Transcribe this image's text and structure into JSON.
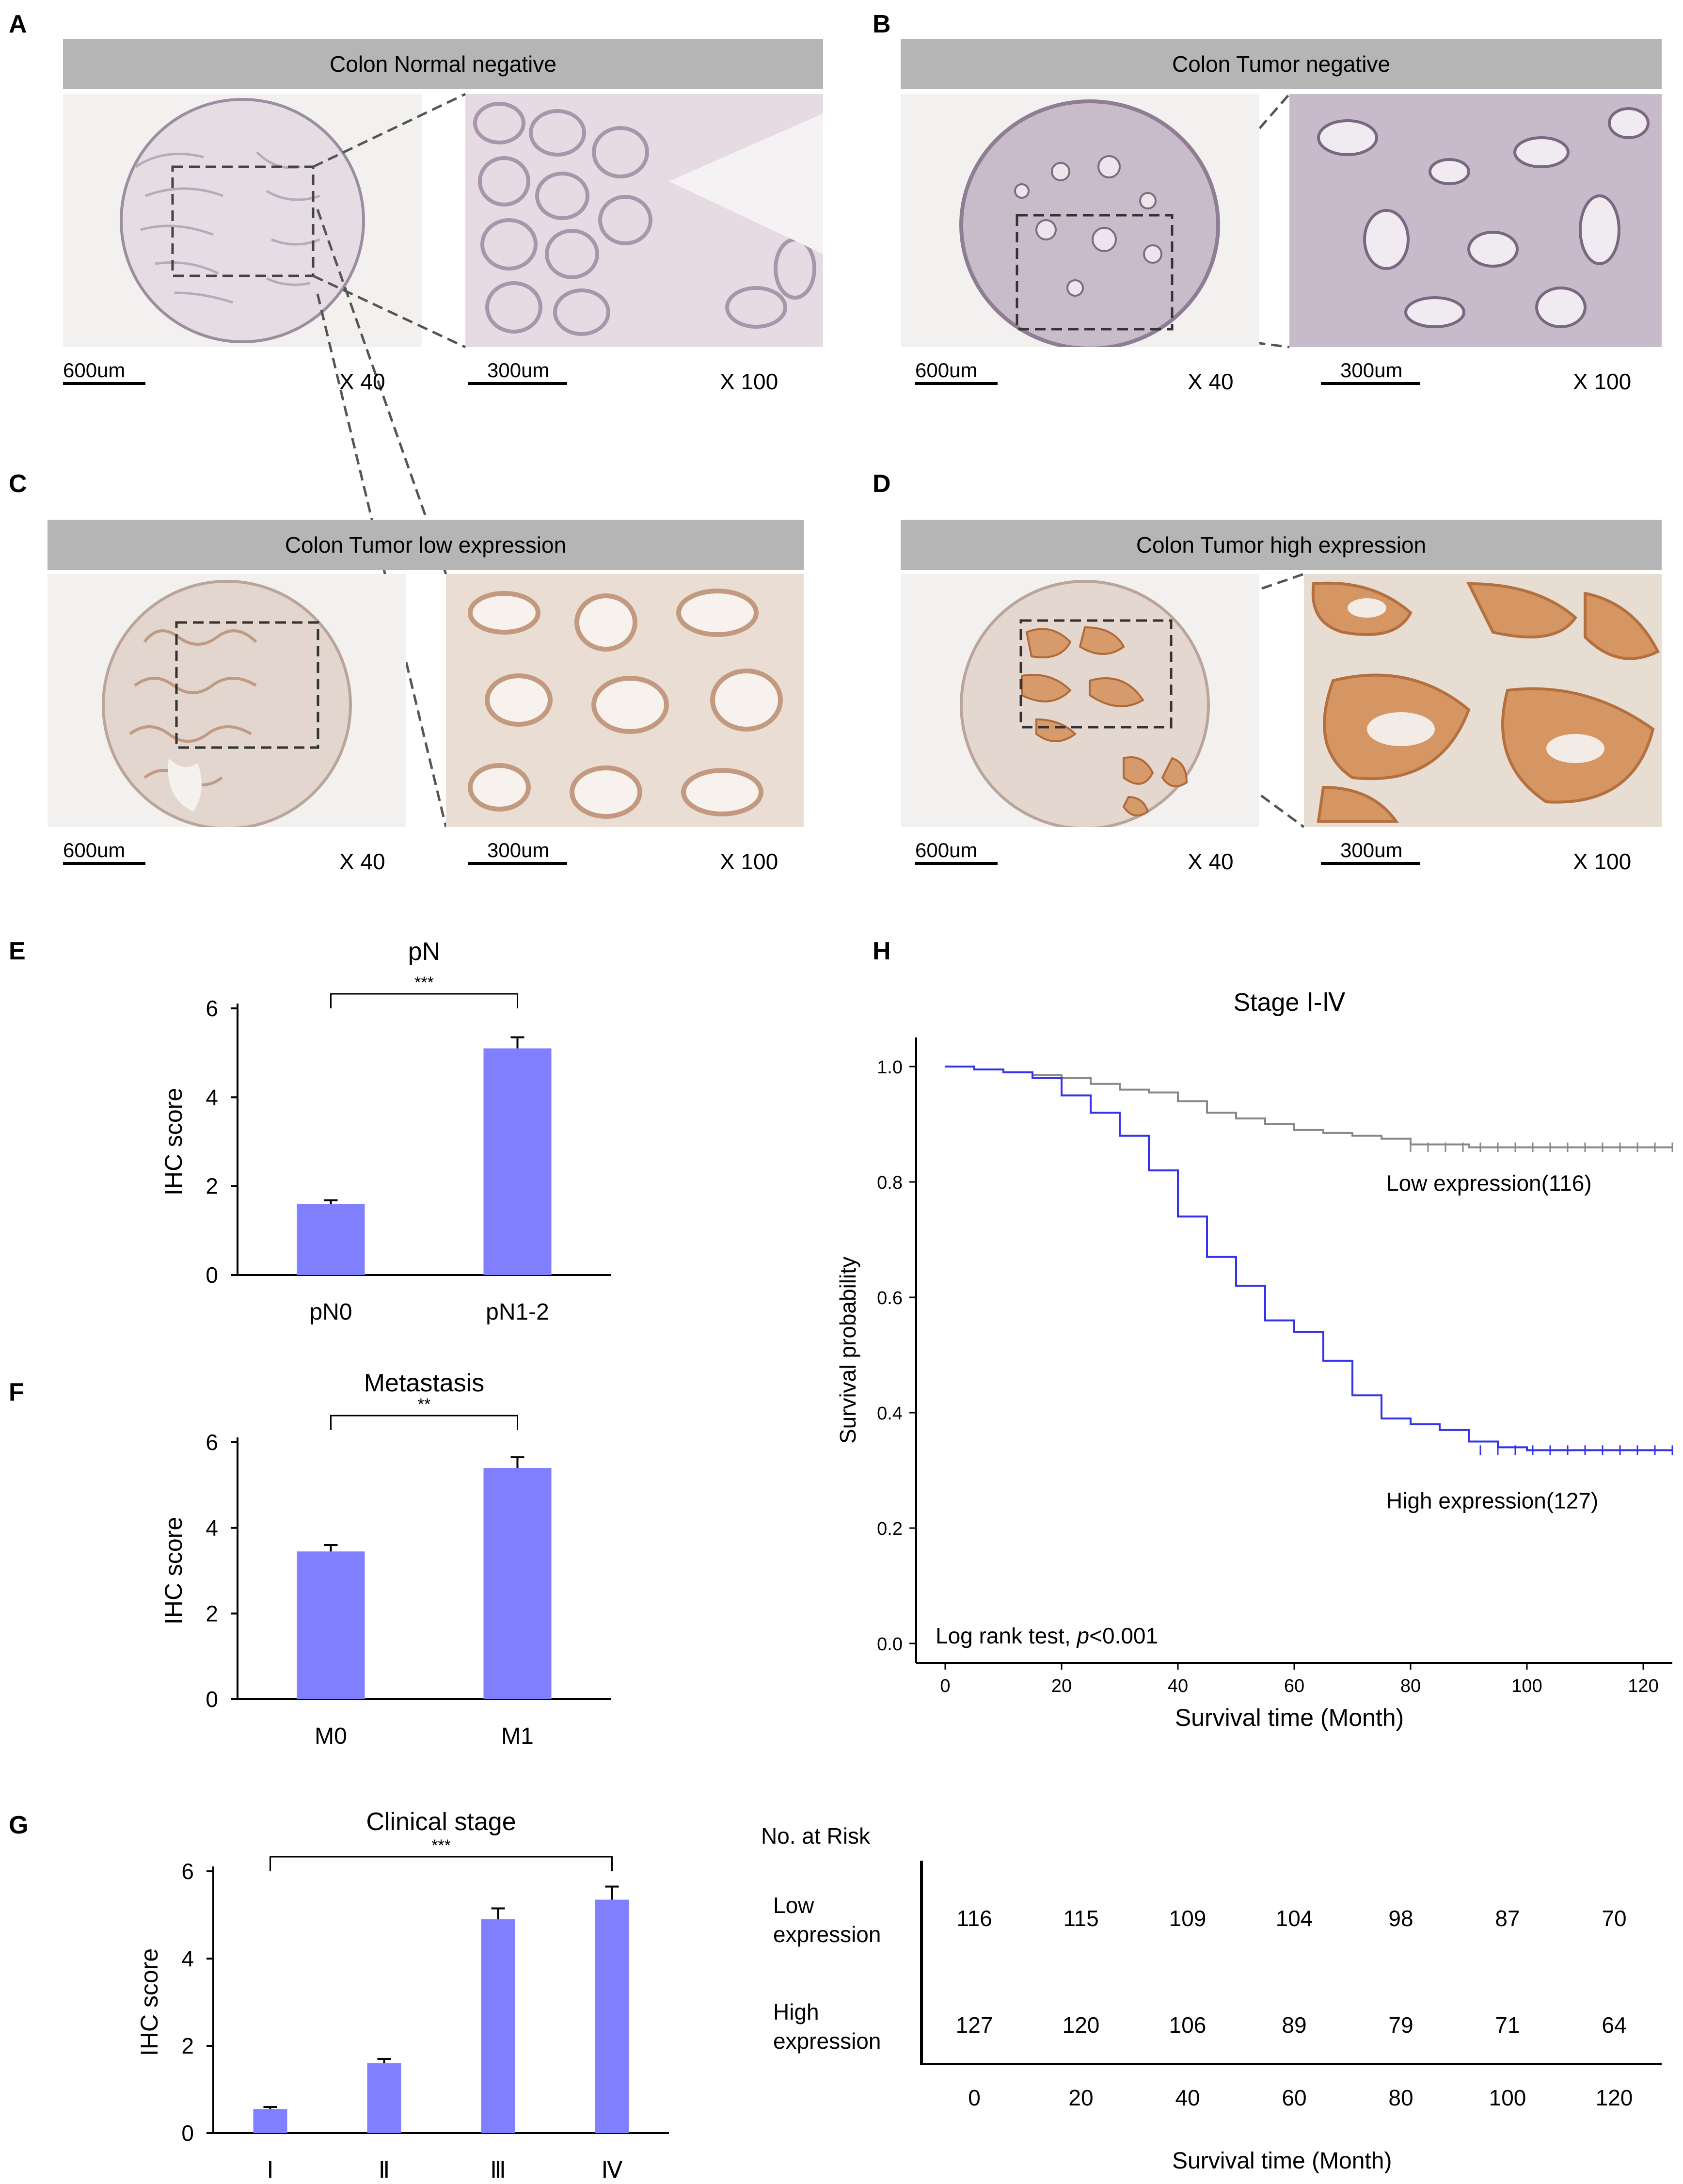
{
  "panels": {
    "A": {
      "label": "A",
      "header": "Colon Normal negative",
      "scale1": "600um",
      "mag1": "X 40",
      "scale2": "300um",
      "mag2": "X 100"
    },
    "B": {
      "label": "B",
      "header": "Colon Tumor negative",
      "scale1": "600um",
      "mag1": "X 40",
      "scale2": "300um",
      "mag2": "X 100"
    },
    "C": {
      "label": "C",
      "header": "Colon Tumor low expression",
      "scale1": "600um",
      "mag1": "X 40",
      "scale2": "300um",
      "mag2": "X 100"
    },
    "D": {
      "label": "D",
      "header": "Colon Tumor high expression",
      "scale1": "600um",
      "mag1": "X 40",
      "scale2": "300um",
      "mag2": "X 100"
    }
  },
  "labels": {
    "E": "E",
    "F": "F",
    "G": "G",
    "H": "H"
  },
  "colors": {
    "bar": "#7f7fff",
    "high_curve": "#3333ee",
    "low_curve": "#888888",
    "header_bg": "#b5b5b5"
  },
  "chart_data": [
    {
      "id": "E",
      "type": "bar",
      "title": "pN",
      "ylabel": "IHC score",
      "xlabel": "",
      "categories": [
        "pN0",
        "pN1-2"
      ],
      "values": [
        1.6,
        5.1
      ],
      "errors": [
        0.08,
        0.25
      ],
      "ylim": [
        0,
        6
      ],
      "yticks": [
        "0",
        "2",
        "4",
        "6"
      ],
      "significance": "***"
    },
    {
      "id": "F",
      "type": "bar",
      "title": "Metastasis",
      "ylabel": "IHC score",
      "xlabel": "",
      "categories": [
        "M0",
        "M1"
      ],
      "values": [
        3.45,
        5.4
      ],
      "errors": [
        0.15,
        0.25
      ],
      "ylim": [
        0,
        6
      ],
      "yticks": [
        "0",
        "2",
        "4",
        "6"
      ],
      "significance": "**"
    },
    {
      "id": "G",
      "type": "bar",
      "title": "Clinical stage",
      "ylabel": "IHC score",
      "xlabel": "",
      "categories": [
        "Ⅰ",
        "Ⅱ",
        "Ⅲ",
        "Ⅳ"
      ],
      "values": [
        0.55,
        1.6,
        4.9,
        5.35
      ],
      "errors": [
        0.05,
        0.1,
        0.25,
        0.3
      ],
      "ylim": [
        0,
        6
      ],
      "yticks": [
        "0",
        "2",
        "4",
        "6"
      ],
      "significance": "***"
    },
    {
      "id": "H",
      "type": "line",
      "title": "Stage Ⅰ-Ⅳ",
      "xlabel": "Survival time (Month)",
      "ylabel": "Survival probability",
      "xlim": [
        0,
        125
      ],
      "ylim": [
        0,
        1.0
      ],
      "xticks": [
        "0",
        "20",
        "40",
        "60",
        "80",
        "100",
        "120"
      ],
      "yticks": [
        "0.0",
        "0.2",
        "0.4",
        "0.6",
        "0.8",
        "1.0"
      ],
      "annotation": "Log rank test, ",
      "annotation_p": "p",
      "annotation_tail": "<0.001",
      "series": [
        {
          "name": "Low expression(116)",
          "x": [
            0,
            5,
            10,
            15,
            20,
            25,
            30,
            35,
            40,
            45,
            50,
            55,
            60,
            65,
            70,
            75,
            80,
            90,
            100,
            110,
            125
          ],
          "y": [
            1.0,
            0.995,
            0.99,
            0.985,
            0.98,
            0.97,
            0.96,
            0.955,
            0.94,
            0.92,
            0.91,
            0.9,
            0.89,
            0.885,
            0.88,
            0.875,
            0.865,
            0.86,
            0.86,
            0.86,
            0.86
          ]
        },
        {
          "name": "High expression(127)",
          "x": [
            0,
            5,
            10,
            15,
            20,
            25,
            30,
            35,
            40,
            45,
            50,
            55,
            60,
            65,
            70,
            75,
            80,
            85,
            90,
            95,
            100,
            110,
            125
          ],
          "y": [
            1.0,
            0.995,
            0.99,
            0.98,
            0.95,
            0.92,
            0.88,
            0.82,
            0.74,
            0.67,
            0.62,
            0.56,
            0.54,
            0.49,
            0.43,
            0.39,
            0.38,
            0.37,
            0.35,
            0.34,
            0.335,
            0.335,
            0.335
          ]
        }
      ]
    }
  ],
  "risk_table": {
    "title": "No. at Risk",
    "rows": [
      {
        "label1": "Low",
        "label2": "expression",
        "values": [
          "116",
          "115",
          "109",
          "104",
          "98",
          "87",
          "70"
        ]
      },
      {
        "label1": "High",
        "label2": "expression",
        "values": [
          "127",
          "120",
          "106",
          "89",
          "79",
          "71",
          "64"
        ]
      }
    ],
    "xticks": [
      "0",
      "20",
      "40",
      "60",
      "80",
      "100",
      "120"
    ],
    "xlabel": "Survival time (Month)"
  }
}
